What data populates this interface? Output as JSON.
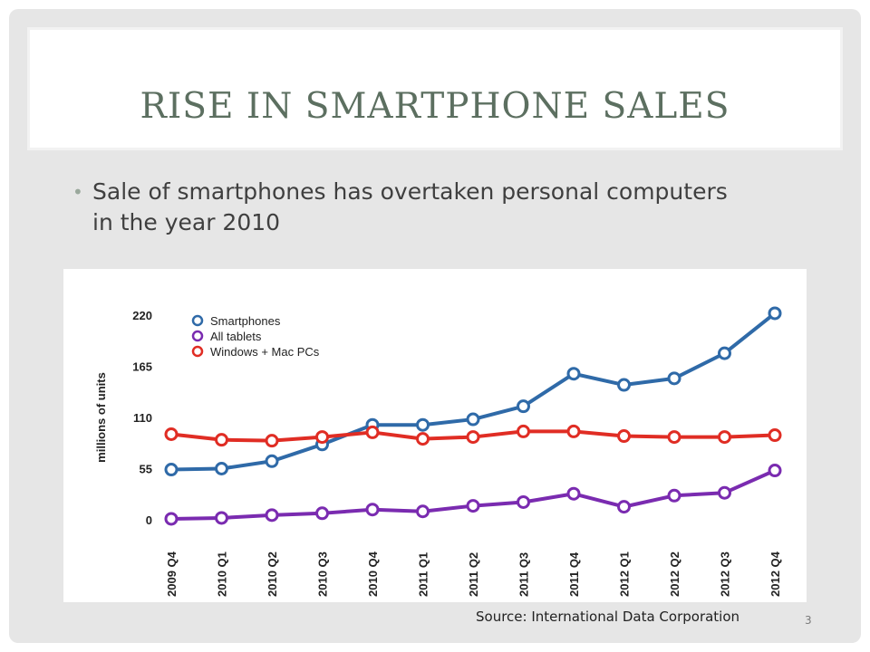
{
  "slide": {
    "title": "RISE IN SMARTPHONE SALES",
    "bullet": "Sale of smartphones has overtaken personal computers in the year 2010",
    "source": "Source: International Data Corporation",
    "page_number": "3"
  },
  "chart_data": {
    "type": "line",
    "title": "",
    "xlabel": "",
    "ylabel": "millions of units",
    "ylim": [
      0,
      220
    ],
    "yticks": [
      0,
      55,
      110,
      165,
      220
    ],
    "ytick_labels": [
      "0",
      "55",
      "110",
      "165",
      "220"
    ],
    "grid": false,
    "legend_position": "top-left",
    "categories": [
      "2009 Q4",
      "2010 Q1",
      "2010 Q2",
      "2010 Q3",
      "2010 Q4",
      "2011 Q1",
      "2011 Q2",
      "2011 Q3",
      "2011 Q4",
      "2012 Q1",
      "2012 Q2",
      "2012 Q3",
      "2012 Q4"
    ],
    "series": [
      {
        "name": "Smartphones",
        "color": "#2f6aa8",
        "values": [
          54,
          55,
          63,
          81,
          102,
          102,
          108,
          122,
          157,
          145,
          152,
          179,
          222
        ]
      },
      {
        "name": "All tablets",
        "color": "#7a2bb0",
        "values": [
          1,
          2,
          5,
          7,
          11,
          9,
          15,
          19,
          28,
          14,
          26,
          29,
          53
        ]
      },
      {
        "name": "Windows + Mac PCs",
        "color": "#e02d24",
        "values": [
          92,
          86,
          85,
          89,
          94,
          87,
          89,
          95,
          95,
          90,
          89,
          89,
          91
        ]
      }
    ]
  }
}
